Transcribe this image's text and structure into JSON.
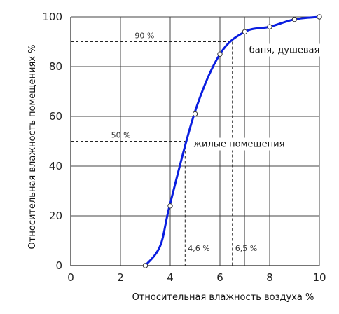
{
  "chart_data": {
    "type": "line",
    "xlabel": "Относительная влажность воздуха %",
    "ylabel": "Относительная влажность помещениях %",
    "xlim": [
      0,
      10
    ],
    "ylim": [
      0,
      100
    ],
    "x_ticks": [
      "0",
      "2",
      "4",
      "6",
      "8",
      "10"
    ],
    "y_ticks": [
      "0",
      "20",
      "40",
      "60",
      "80",
      "100"
    ],
    "grid": true,
    "series": [
      {
        "color": "#0a1ee0",
        "x": [
          3,
          3.6,
          4,
          5,
          6,
          7,
          8,
          9,
          10
        ],
        "y": [
          0,
          8,
          25,
          62,
          85,
          94,
          96,
          99,
          100
        ]
      }
    ],
    "markers": [
      {
        "x": 3,
        "y": 0
      },
      {
        "x": 4,
        "y": 24
      },
      {
        "x": 5,
        "y": 61
      },
      {
        "x": 6,
        "y": 85
      },
      {
        "x": 7,
        "y": 94
      },
      {
        "x": 8,
        "y": 96
      },
      {
        "x": 9,
        "y": 99
      },
      {
        "x": 10,
        "y": 100
      }
    ],
    "annotations": [
      {
        "name": "level-50",
        "y": 50,
        "x_cross": 4.6,
        "y_label": "50 %",
        "x_label": "4,6 %",
        "region_label": "жилые помещения"
      },
      {
        "name": "level-90",
        "y": 90,
        "x_cross": 6.5,
        "y_label": "90 %",
        "x_label": "6,5 %",
        "region_label": "баня, душевая"
      }
    ]
  }
}
